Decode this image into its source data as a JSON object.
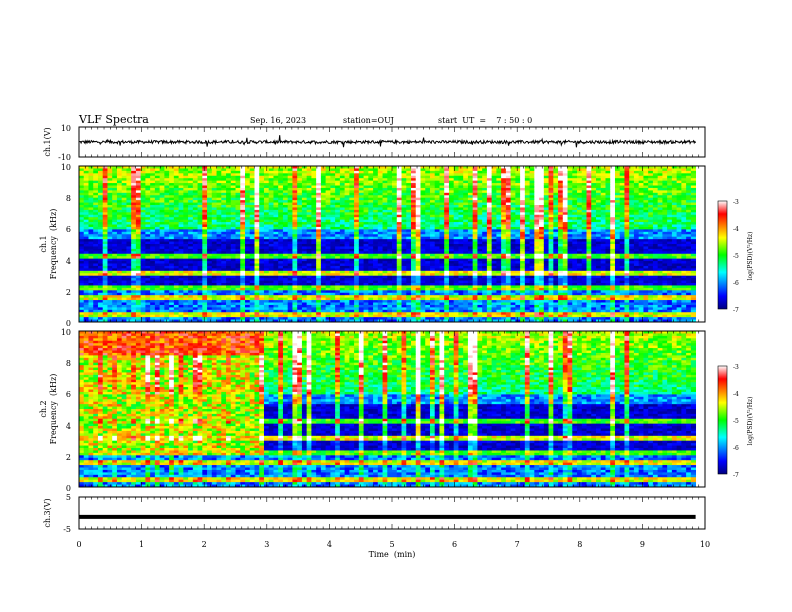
{
  "header": {
    "title": "VLF Spectra",
    "date": "Sep. 16, 2023",
    "station": "station=OUJ",
    "start": "start  UT  =    7 : 50 : 0"
  },
  "chart_data": [
    {
      "type": "line",
      "panel": "ch1-waveform",
      "ylabel": "ch.1(V)",
      "ylim": [
        -10,
        10
      ],
      "yticks": [
        "10",
        "-10"
      ],
      "xlim": [
        0,
        10
      ],
      "baseline": 0,
      "noise_amplitude": 2
    },
    {
      "type": "heatmap",
      "panel": "ch1-spectrogram",
      "ylabel_ch": "ch.1",
      "ylabel": "Frequency  (kHz)",
      "ylim": [
        0,
        10
      ],
      "yticks": [
        "0",
        "2",
        "4",
        "6",
        "8",
        "10"
      ],
      "xlim": [
        0,
        9.85
      ],
      "colorbar": {
        "label": "log(PSD)(V²/Hz)",
        "range": [
          -7,
          -3
        ],
        "ticks": [
          "-3",
          "-4",
          "-5",
          "-6",
          "-7"
        ]
      }
    },
    {
      "type": "heatmap",
      "panel": "ch2-spectrogram",
      "ylabel_ch": "ch.2",
      "ylabel": "Frequency  (kHz)",
      "ylim": [
        0,
        10
      ],
      "yticks": [
        "0",
        "2",
        "4",
        "6",
        "8",
        "10"
      ],
      "xlim": [
        0,
        9.85
      ],
      "colorbar": {
        "label": "log(PSD)(V²/Hz)",
        "range": [
          -7,
          -3
        ],
        "ticks": [
          "-3",
          "-4",
          "-5",
          "-6",
          "-7"
        ]
      },
      "intense_interval_min": [
        0,
        2.95
      ]
    },
    {
      "type": "line",
      "panel": "ch3-waveform",
      "ylabel": "ch.3(V)",
      "ylim": [
        -5,
        5
      ],
      "yticks": [
        "5",
        "0",
        "-5"
      ],
      "xlim": [
        0,
        10
      ],
      "baseline": -1.2
    }
  ],
  "xaxis": {
    "label": "Time  (min)",
    "ticks": [
      "0",
      "1",
      "2",
      "3",
      "4",
      "5",
      "6",
      "7",
      "8",
      "9",
      "10"
    ]
  }
}
